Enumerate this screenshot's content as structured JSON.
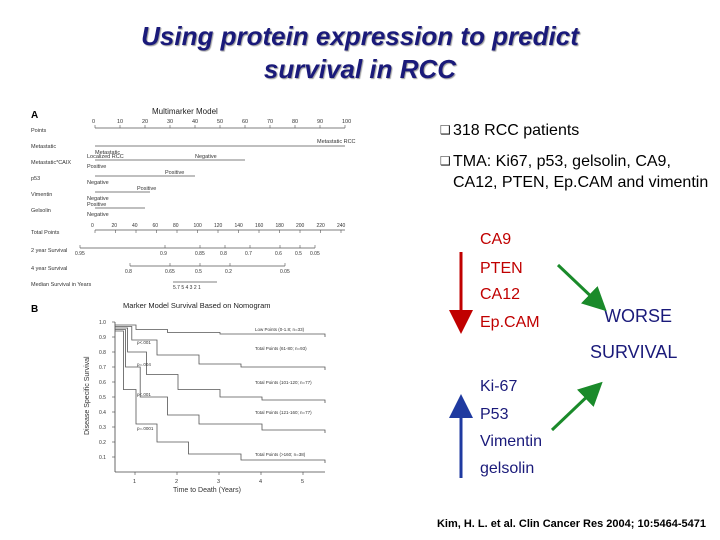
{
  "title": {
    "line1": "Using protein expression to predict",
    "line2": "survival in RCC"
  },
  "figure": {
    "panel_a": {
      "letter": "A",
      "title": "Multimarker Model",
      "rows": [
        "Points",
        "Metastatic",
        "Metastatic*CAIX",
        "p53",
        "Vimentin",
        "Gelsolin",
        "Total Points",
        "2 year Survival",
        "4 year Survival",
        "Median Survival in Years"
      ],
      "points_ticks": [
        "0",
        "10",
        "20",
        "30",
        "40",
        "50",
        "60",
        "70",
        "80",
        "90",
        "100"
      ],
      "total_ticks": [
        "0",
        "20",
        "40",
        "60",
        "80",
        "100",
        "120",
        "140",
        "160",
        "180",
        "200",
        "220",
        "240"
      ],
      "two_year_ticks": [
        "0.95",
        "0.9",
        "0.85",
        "0.8",
        "0.7",
        "0.6",
        "0.5",
        "0.05"
      ],
      "four_year_ticks": [
        "0.8",
        "0.65",
        "0.5",
        "0.2",
        "0.05"
      ],
      "median_ticks": "5.7 5 4 3 2 1",
      "labels": {
        "metastatic_left": "Metastatic",
        "metastatic_right": "Metastatic RCC",
        "localized": "Localized RCC",
        "negative": "Negative",
        "positive": "Positive"
      }
    },
    "panel_b": {
      "letter": "B",
      "title": "Marker Model Survival Based on Nomogram",
      "ylabel": "Disease Specific Survival",
      "xlabel": "Time to Death (Years)",
      "y_ticks": [
        "1.0",
        "0.9",
        "0.8",
        "0.7",
        "0.6",
        "0.5",
        "0.4",
        "0.3",
        "0.2",
        "0.1"
      ],
      "x_ticks": [
        "1",
        "2",
        "3",
        "4",
        "5"
      ],
      "curve_labels": [
        "Low Points (0-1.8; n=33)",
        "Total Points (61-80; n=93)",
        "Total Points (101-120; n=77)",
        "Total Points (121-160; n=77)",
        "Total Points (>160; n=38)"
      ],
      "p_labels": [
        "p<.001",
        "p=.004",
        "p<.001",
        "p=.0001"
      ]
    }
  },
  "bullets": [
    "318 RCC patients",
    "TMA: Ki67, p53, gelsolin, CA9, CA12, PTEN, Ep.CAM and vimentin"
  ],
  "worse_markers": [
    "CA9",
    "PTEN",
    "CA12",
    "Ep.CAM"
  ],
  "better_markers": [
    "Ki-67",
    "P53",
    "Vimentin",
    "gelsolin"
  ],
  "outcome": {
    "line1": "WORSE",
    "line2": "SURVIVAL"
  },
  "citation": "Kim, H. L. et al. Clin Cancer Res 2004; 10:5464-5471",
  "colors": {
    "title": "#1a1a7a",
    "red_arrow": "#c00000",
    "green_arrow": "#1a8a2a",
    "blue_arrow": "#1f3aa0"
  }
}
